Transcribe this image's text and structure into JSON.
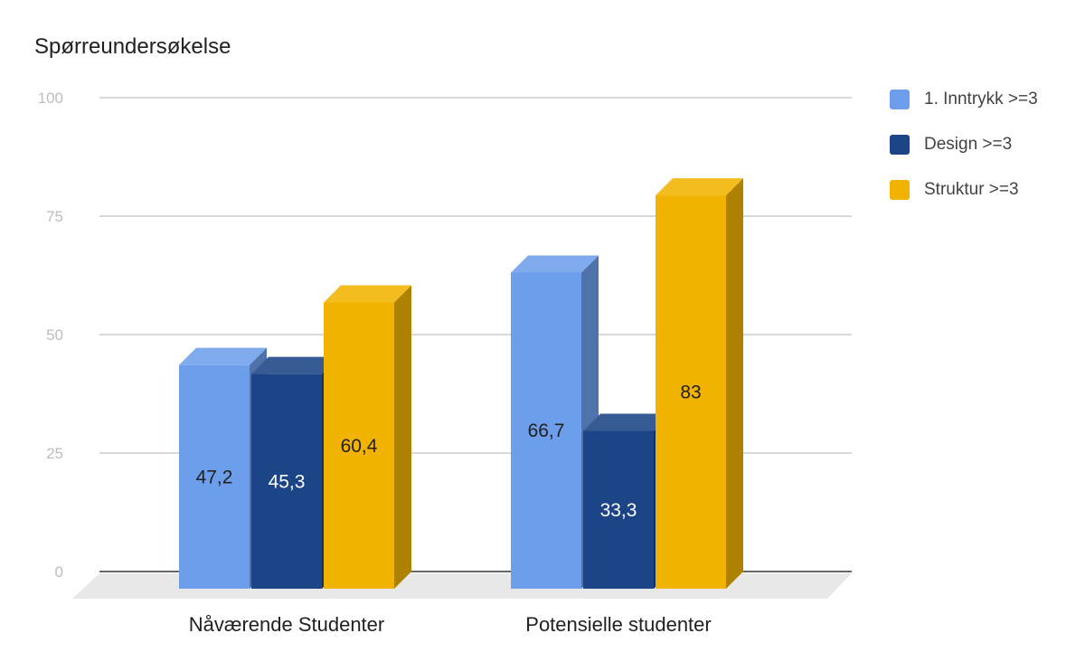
{
  "chart_data": {
    "type": "bar",
    "title": "Spørreundersøkelse",
    "categories": [
      "Nåværende Studenter",
      "Potensielle studenter"
    ],
    "series": [
      {
        "name": "1. Inntrykk >=3",
        "values": [
          47.2,
          66.7
        ],
        "labels": [
          "47,2",
          "66,7"
        ],
        "color": "#6d9eeb",
        "label_color": "#212121"
      },
      {
        "name": "Design >=3",
        "values": [
          45.3,
          33.3
        ],
        "labels": [
          "45,3",
          "33,3"
        ],
        "color": "#1c4587",
        "label_color": "#ffffff"
      },
      {
        "name": "Struktur >=3",
        "values": [
          60.4,
          83
        ],
        "labels": [
          "60,4",
          "83"
        ],
        "color": "#f1b300",
        "label_color": "#212121"
      }
    ],
    "ylim": [
      0,
      100
    ],
    "yticks": [
      "0",
      "25",
      "50",
      "75",
      "100"
    ],
    "grid": true,
    "legend": "right",
    "style": "3d"
  }
}
